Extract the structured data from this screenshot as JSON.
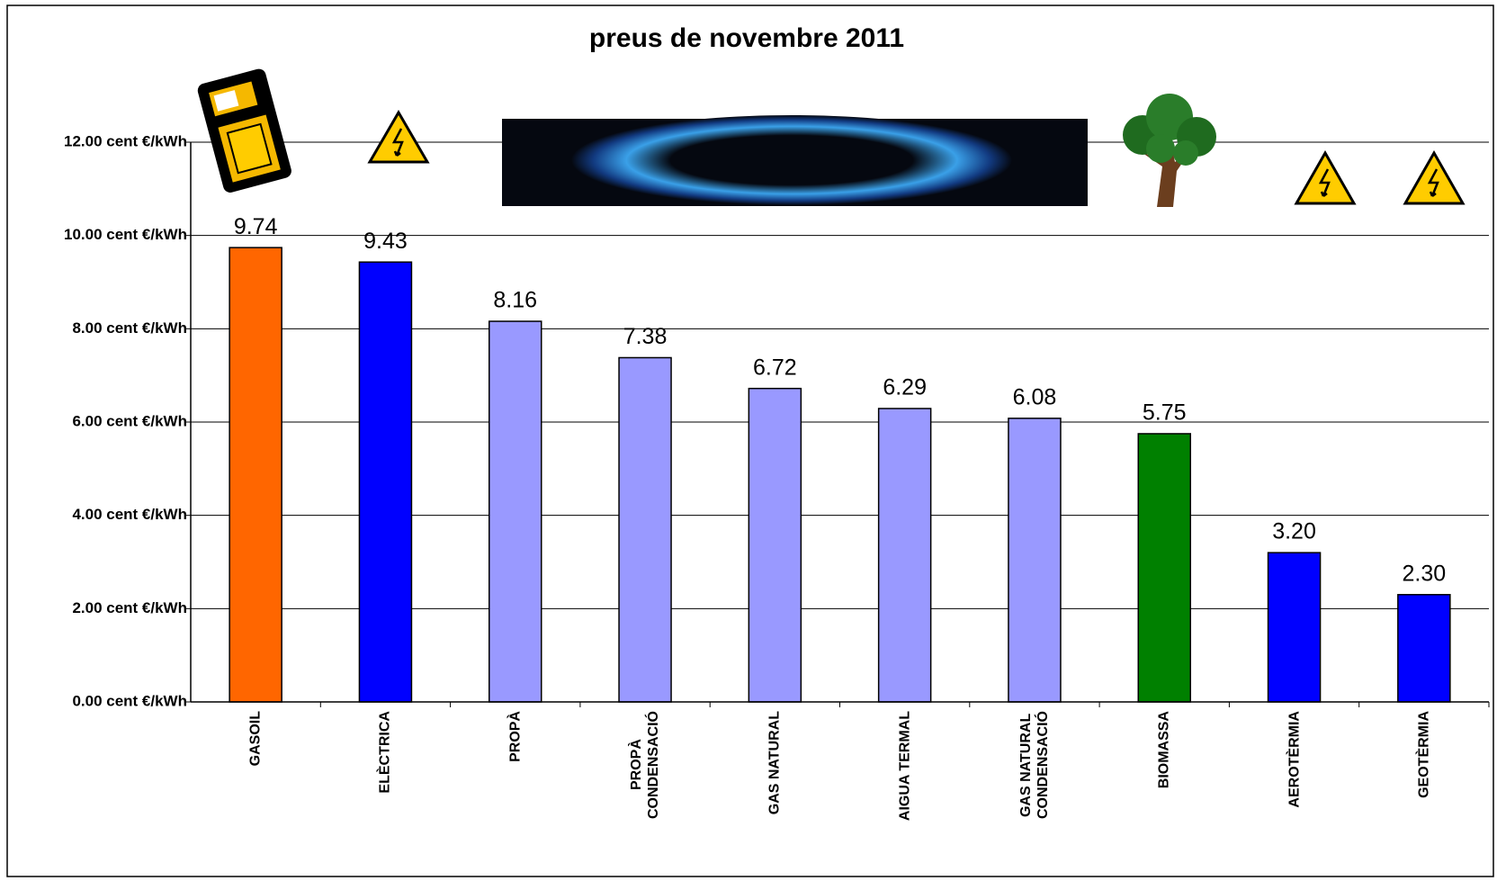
{
  "chart_data": {
    "type": "bar",
    "title": "preus de novembre 2011",
    "categories": [
      "GASOIL",
      "ELÈCTRICA",
      "PROPÀ",
      "PROPÀ\nCONDENSACIÓ",
      "GAS NATURAL",
      "AIGUA TERMAL",
      "GAS NATURAL\nCONDENSACIÓ",
      "BIOMASSA",
      "AEROTÈRMIA",
      "GEOTÈRMIA"
    ],
    "values": [
      9.74,
      9.43,
      8.16,
      7.38,
      6.72,
      6.29,
      6.08,
      5.75,
      3.2,
      2.3
    ],
    "value_labels": [
      "9.74",
      "9.43",
      "8.16",
      "7.38",
      "6.72",
      "6.29",
      "6.08",
      "5.75",
      "3.20",
      "2.30"
    ],
    "colors": [
      "#ff6600",
      "#0000ff",
      "#9999ff",
      "#9999ff",
      "#9999ff",
      "#9999ff",
      "#9999ff",
      "#008000",
      "#0000ff",
      "#0000ff"
    ],
    "ylim": [
      0,
      12
    ],
    "yticks": [
      {
        "value": 0,
        "label": "0.00 cent €/kWh"
      },
      {
        "value": 2,
        "label": "2.00 cent €/kWh"
      },
      {
        "value": 4,
        "label": "4.00 cent €/kWh"
      },
      {
        "value": 6,
        "label": "6.00 cent €/kWh"
      },
      {
        "value": 8,
        "label": "8.00 cent €/kWh"
      },
      {
        "value": 10,
        "label": "10.00 cent €/kWh"
      },
      {
        "value": 12,
        "label": "12.00 cent €/kWh"
      }
    ],
    "grid": true
  }
}
